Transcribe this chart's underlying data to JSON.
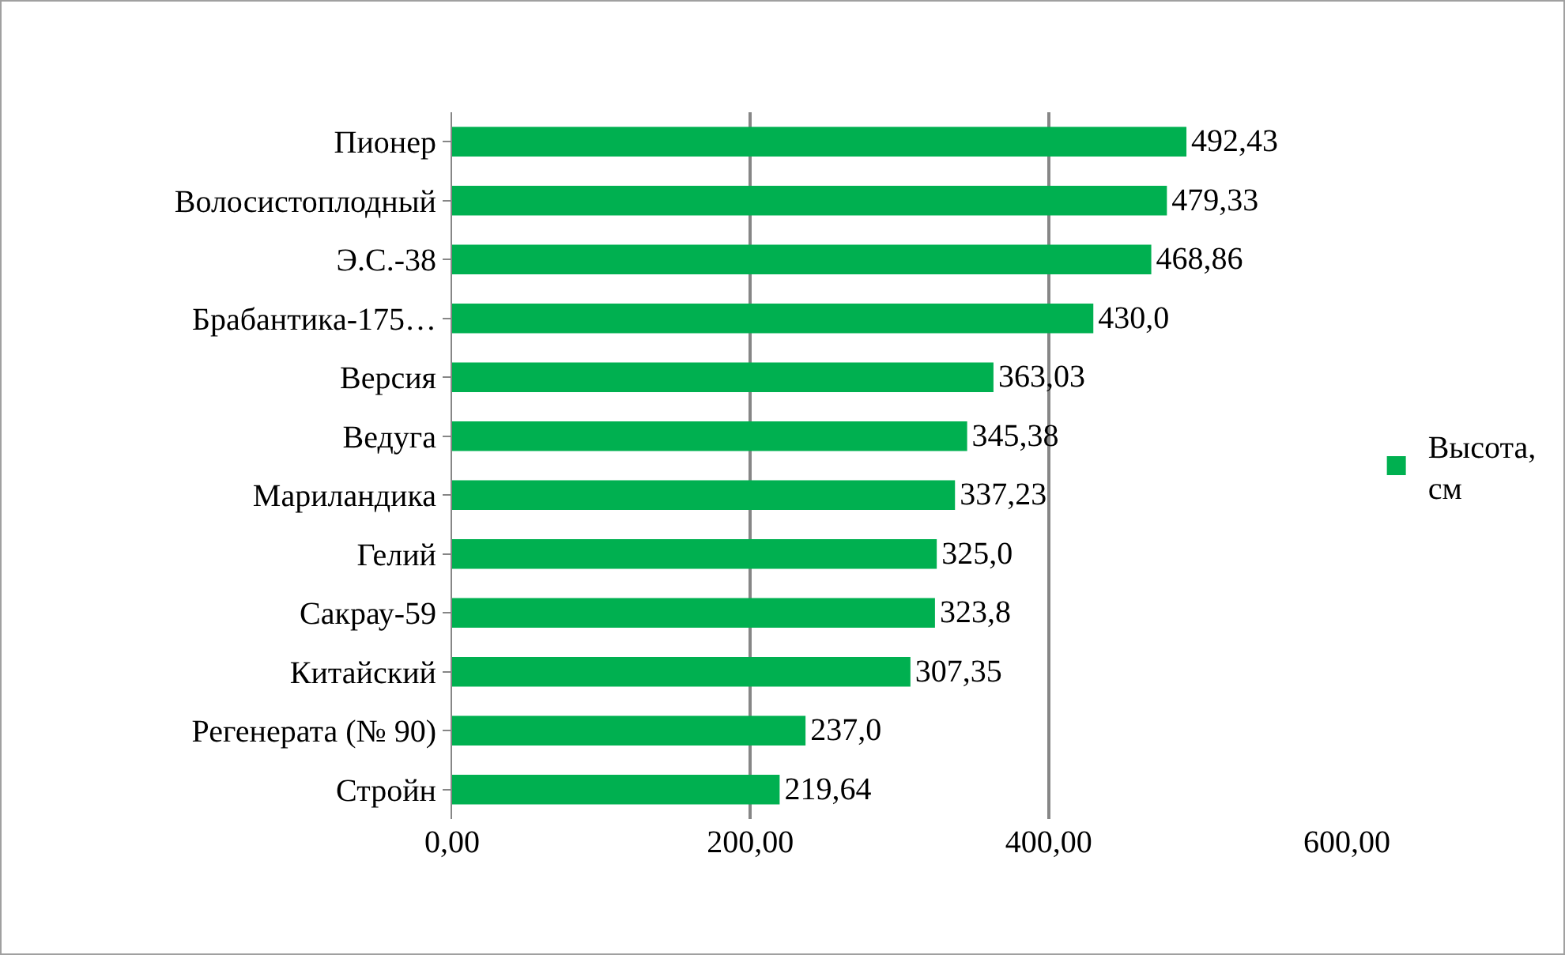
{
  "chart_data": {
    "type": "bar",
    "orientation": "horizontal",
    "categories": [
      "Пионер",
      "Волосистоплодный",
      "Э.С.-38",
      "Брабантика-175…",
      "Версия",
      "Ведуга",
      "Мариландика",
      "Гелий",
      "Сакрау-59",
      "Китайский",
      "Регенерата (№ 90)",
      "Стройн"
    ],
    "series": [
      {
        "name": "Высота, см",
        "color": "#00b050",
        "values": [
          492.43,
          479.33,
          468.86,
          430.0,
          363.03,
          345.38,
          337.23,
          325.0,
          323.8,
          307.35,
          237.0,
          219.64
        ],
        "value_labels": [
          "492,43",
          "479,33",
          "468,86",
          "430,0",
          "363,03",
          "345,38",
          "337,23",
          "325,0",
          "323,8",
          "307,35",
          "237,0",
          "219,64"
        ]
      }
    ],
    "xlim": [
      0,
      600
    ],
    "xticks": [
      {
        "value": 0,
        "label": "0,00"
      },
      {
        "value": 200,
        "label": "200,00"
      },
      {
        "value": 400,
        "label": "400,00"
      },
      {
        "value": 600,
        "label": "600,00"
      }
    ],
    "grid": "x",
    "legend": "right"
  }
}
